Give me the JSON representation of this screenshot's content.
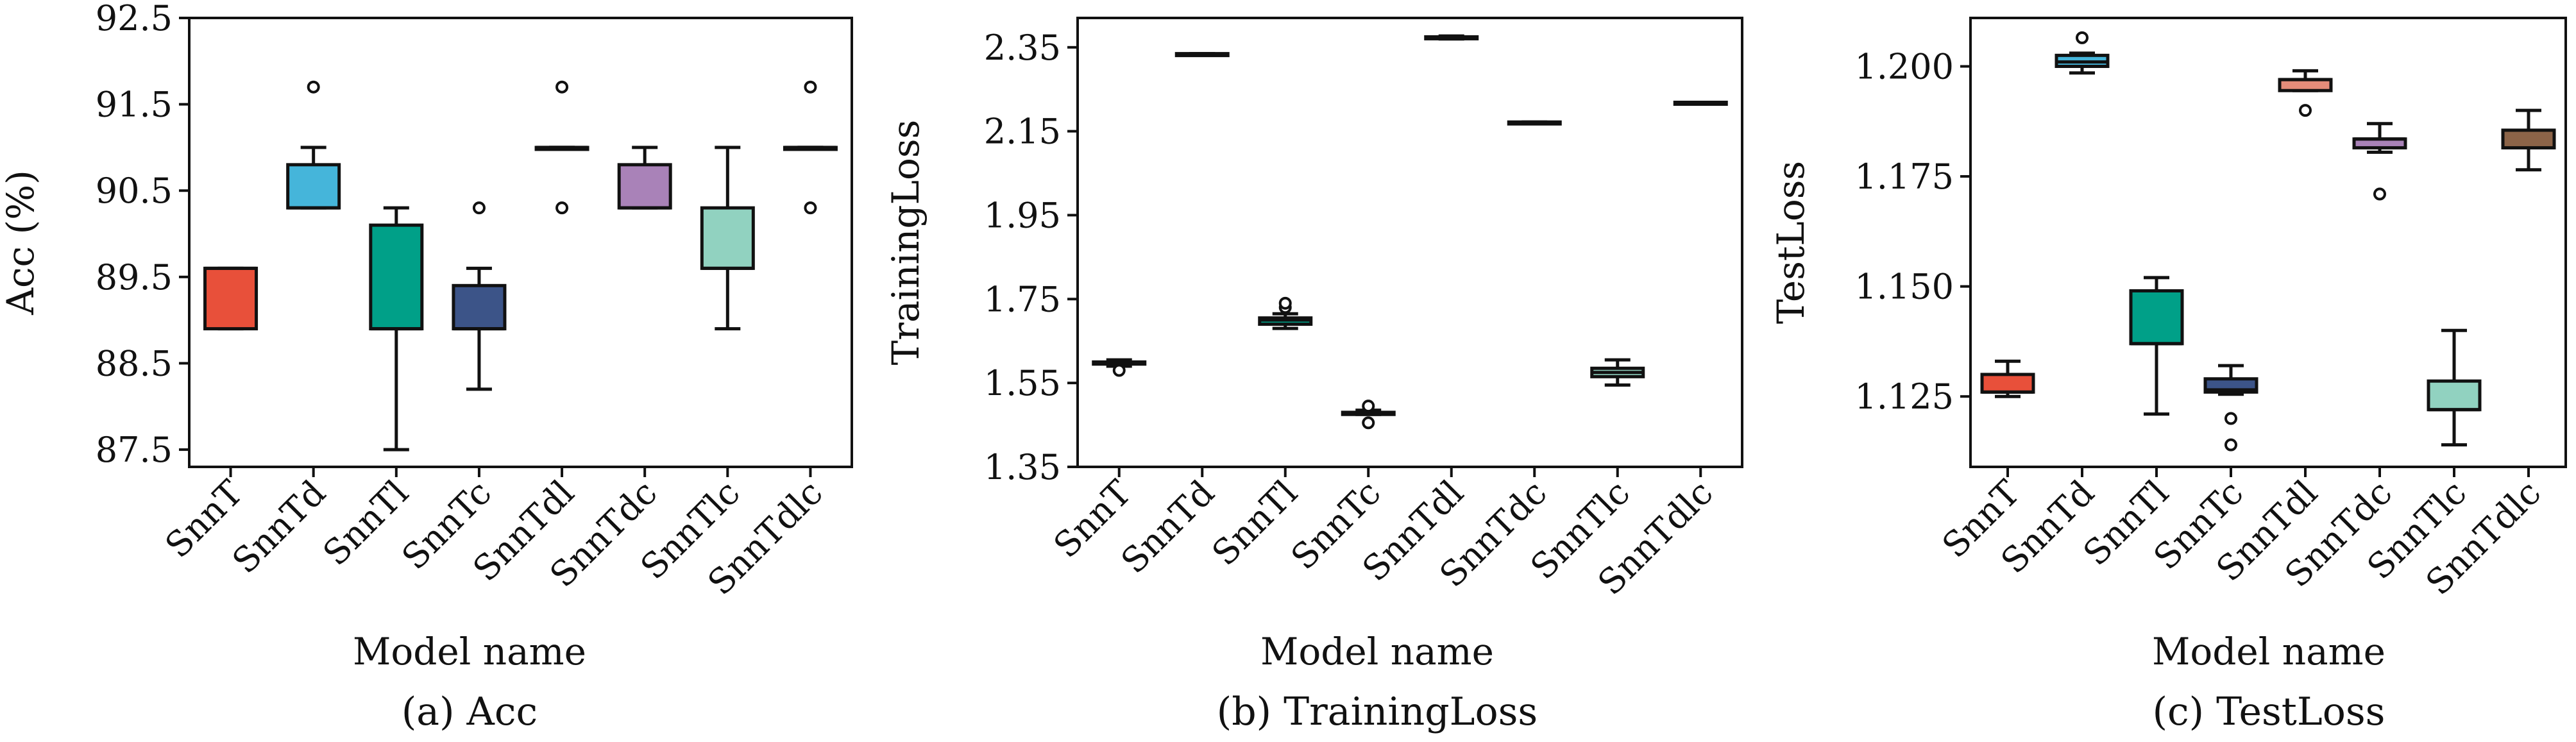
{
  "chart_data": [
    {
      "type": "box",
      "caption": "(a) Acc",
      "xlabel": "Model name",
      "ylabel": "Acc (%)",
      "ylim": [
        87.3,
        92.5
      ],
      "yticks": [
        87.5,
        88.5,
        89.5,
        90.5,
        91.5,
        92.5
      ],
      "ytick_labels": [
        "87.5",
        "88.5",
        "89.5",
        "90.5",
        "91.5",
        "92.5"
      ],
      "categories": [
        "SnnT",
        "SnnTd",
        "SnnTl",
        "SnnTc",
        "SnnTdl",
        "SnnTdc",
        "SnnTlc",
        "SnnTdlc"
      ],
      "colors": [
        "#e8503a",
        "#45b5da",
        "#00a088",
        "#3c5488",
        "#e58c7a",
        "#a982b8",
        "#91d2c0",
        "#8c6448"
      ],
      "boxes": [
        {
          "min": 88.9,
          "q1": 88.9,
          "median": 89.6,
          "q3": 89.6,
          "max": 89.6,
          "outliers": []
        },
        {
          "min": 90.3,
          "q1": 90.3,
          "median": 90.3,
          "q3": 90.8,
          "max": 91.0,
          "outliers": [
            91.7
          ]
        },
        {
          "min": 87.5,
          "q1": 88.9,
          "median": 88.9,
          "q3": 90.1,
          "max": 90.3,
          "outliers": []
        },
        {
          "min": 88.2,
          "q1": 88.9,
          "median": 88.9,
          "q3": 89.4,
          "max": 89.6,
          "outliers": [
            90.3
          ]
        },
        {
          "min": 91.0,
          "q1": 91.0,
          "median": 91.0,
          "q3": 91.0,
          "max": 91.0,
          "outliers": [
            91.7,
            90.3
          ]
        },
        {
          "min": 90.3,
          "q1": 90.3,
          "median": 90.3,
          "q3": 90.8,
          "max": 91.0,
          "outliers": []
        },
        {
          "min": 88.9,
          "q1": 89.6,
          "median": 89.6,
          "q3": 90.3,
          "max": 91.0,
          "outliers": []
        },
        {
          "min": 91.0,
          "q1": 91.0,
          "median": 91.0,
          "q3": 91.0,
          "max": 91.0,
          "outliers": [
            91.7,
            90.3
          ]
        }
      ]
    },
    {
      "type": "box",
      "caption": "(b) TrainingLoss",
      "xlabel": "Model name",
      "ylabel": "TrainingLoss",
      "ylim": [
        1.35,
        2.42
      ],
      "yticks": [
        1.35,
        1.55,
        1.75,
        1.95,
        2.15,
        2.35
      ],
      "ytick_labels": [
        "1.35",
        "1.55",
        "1.75",
        "1.95",
        "2.15",
        "2.35"
      ],
      "categories": [
        "SnnT",
        "SnnTd",
        "SnnTl",
        "SnnTc",
        "SnnTdl",
        "SnnTdc",
        "SnnTlc",
        "SnnTdlc"
      ],
      "colors": [
        "#e8503a",
        "#45b5da",
        "#00a088",
        "#3c5488",
        "#e58c7a",
        "#a982b8",
        "#91d2c0",
        "#8c6448"
      ],
      "boxes": [
        {
          "min": 1.59,
          "q1": 1.595,
          "median": 1.6,
          "q3": 1.6,
          "max": 1.605,
          "outliers": [
            1.58
          ]
        },
        {
          "min": 2.333,
          "q1": 2.333,
          "median": 2.334,
          "q3": 2.335,
          "max": 2.335,
          "outliers": []
        },
        {
          "min": 1.68,
          "q1": 1.69,
          "median": 1.7,
          "q3": 1.705,
          "max": 1.715,
          "outliers": [
            1.73,
            1.74
          ]
        },
        {
          "min": 1.475,
          "q1": 1.475,
          "median": 1.48,
          "q3": 1.48,
          "max": 1.485,
          "outliers": [
            1.455,
            1.495
          ]
        },
        {
          "min": 2.37,
          "q1": 2.372,
          "median": 2.374,
          "q3": 2.375,
          "max": 2.377,
          "outliers": []
        },
        {
          "min": 2.168,
          "q1": 2.168,
          "median": 2.17,
          "q3": 2.172,
          "max": 2.172,
          "outliers": []
        },
        {
          "min": 1.545,
          "q1": 1.565,
          "median": 1.575,
          "q3": 1.585,
          "max": 1.605,
          "outliers": []
        },
        {
          "min": 2.215,
          "q1": 2.215,
          "median": 2.217,
          "q3": 2.219,
          "max": 2.219,
          "outliers": []
        }
      ]
    },
    {
      "type": "box",
      "caption": "(c) TestLoss",
      "xlabel": "Model name",
      "ylabel": "TestLoss",
      "ylim": [
        1.109,
        1.211
      ],
      "yticks": [
        1.125,
        1.15,
        1.175,
        1.2
      ],
      "ytick_labels": [
        "1.125",
        "1.150",
        "1.175",
        "1.200"
      ],
      "categories": [
        "SnnT",
        "SnnTd",
        "SnnTl",
        "SnnTc",
        "SnnTdl",
        "SnnTdc",
        "SnnTlc",
        "SnnTdlc"
      ],
      "colors": [
        "#e8503a",
        "#45b5da",
        "#00a088",
        "#3c5488",
        "#e58c7a",
        "#a982b8",
        "#91d2c0",
        "#8c6448"
      ],
      "boxes": [
        {
          "min": 1.125,
          "q1": 1.126,
          "median": 1.126,
          "q3": 1.13,
          "max": 1.133,
          "outliers": []
        },
        {
          "min": 1.1985,
          "q1": 1.2,
          "median": 1.201,
          "q3": 1.2025,
          "max": 1.203,
          "outliers": [
            1.2065
          ]
        },
        {
          "min": 1.121,
          "q1": 1.137,
          "median": 1.137,
          "q3": 1.149,
          "max": 1.152,
          "outliers": []
        },
        {
          "min": 1.1255,
          "q1": 1.126,
          "median": 1.1265,
          "q3": 1.129,
          "max": 1.132,
          "outliers": [
            1.12,
            1.114
          ]
        },
        {
          "min": 1.1945,
          "q1": 1.1945,
          "median": 1.197,
          "q3": 1.197,
          "max": 1.199,
          "outliers": [
            1.19
          ]
        },
        {
          "min": 1.1805,
          "q1": 1.1815,
          "median": 1.1835,
          "q3": 1.1835,
          "max": 1.187,
          "outliers": [
            1.171
          ]
        },
        {
          "min": 1.114,
          "q1": 1.122,
          "median": 1.122,
          "q3": 1.1285,
          "max": 1.14,
          "outliers": []
        },
        {
          "min": 1.1765,
          "q1": 1.1815,
          "median": 1.1815,
          "q3": 1.1855,
          "max": 1.19,
          "outliers": []
        }
      ]
    }
  ]
}
